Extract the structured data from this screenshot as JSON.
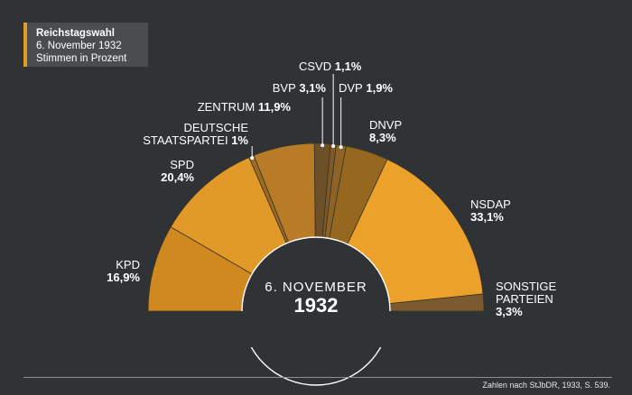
{
  "title_box": {
    "line1": "Reichstagswahl",
    "line2": "6. November 1932",
    "line3": "Stimmen in Prozent"
  },
  "center": {
    "line1": "6. NOVEMBER",
    "line2": "1932"
  },
  "source": "Zahlen nach StJbDR, 1933, S. 539.",
  "colors": {
    "background": "#303335",
    "accent": "#e59b25"
  },
  "chart_data": {
    "type": "pie",
    "subtype": "semicircle-parliament",
    "title": "Reichstagswahl",
    "subtitle": "6. November 1932",
    "unit": "Stimmen in Prozent",
    "slices": [
      {
        "key": "kpd",
        "name": "KPD",
        "value": 16.9,
        "value_label": "16,9%",
        "color": "#d0891f"
      },
      {
        "key": "spd",
        "name": "SPD",
        "value": 20.4,
        "value_label": "20,4%",
        "color": "#e19a27"
      },
      {
        "key": "dstp",
        "name_lines": [
          "DEUTSCHE",
          "STAATSPARTEI"
        ],
        "value": 1.0,
        "value_label": "1%",
        "color": "#9c6a22"
      },
      {
        "key": "zentrum",
        "name": "ZENTRUM",
        "value": 11.9,
        "value_label": "11,9%",
        "color": "#b87b26"
      },
      {
        "key": "bvp",
        "name": "BVP",
        "value": 3.1,
        "value_label": "3,1%",
        "color": "#6e5028"
      },
      {
        "key": "csvd",
        "name": "CSVD",
        "value": 1.1,
        "value_label": "1,1%",
        "color": "#7e5a2a"
      },
      {
        "key": "dvp",
        "name": "DVP",
        "value": 1.9,
        "value_label": "1,9%",
        "color": "#8e6426"
      },
      {
        "key": "dnvp",
        "name": "DNVP",
        "value": 8.3,
        "value_label": "8,3%",
        "color": "#96671f"
      },
      {
        "key": "nsdap",
        "name": "NSDAP",
        "value": 33.1,
        "value_label": "33,1%",
        "color": "#eca12b"
      },
      {
        "key": "sonstige",
        "name_lines": [
          "SONSTIGE",
          "PARTEIEN"
        ],
        "value": 3.3,
        "value_label": "3,3%",
        "color": "#7a5a2e"
      }
    ]
  }
}
